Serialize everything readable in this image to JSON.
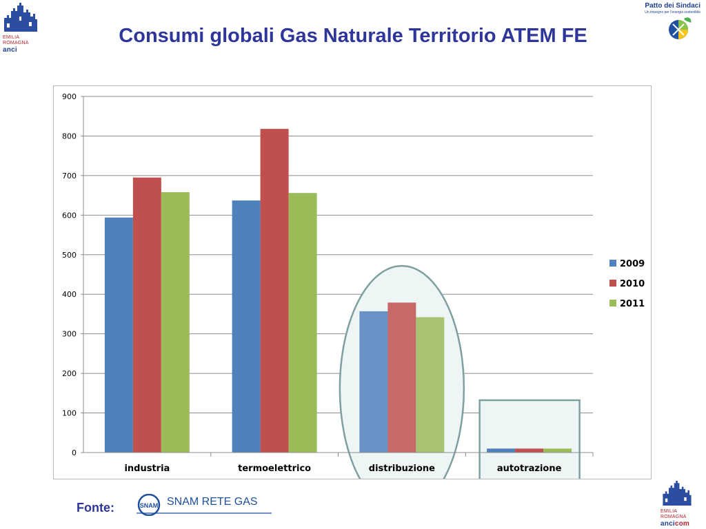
{
  "slide": {
    "title": "Consumi globali Gas Naturale Territorio ATEM FE"
  },
  "logos": {
    "emilia_romagna_top": {
      "line1": "EMILIA",
      "line2": "ROMAGNA",
      "line3": "anci"
    },
    "patto": {
      "title": "Patto dei Sindaci",
      "subtitle": "Un impegno per l'energia sostenibile"
    },
    "emilia_romagna_bottom": {
      "line1": "EMILIA",
      "line2": "ROMAGNA",
      "line3a": "anci",
      "line3b": "com"
    },
    "snam": {
      "text": "SNAM RETE GAS",
      "emblem": "SNAM"
    }
  },
  "footer": {
    "fonte_label": "Fonte:"
  },
  "colors": {
    "title": "#2f3699",
    "series": [
      "#4f81bd",
      "#c0504d",
      "#9bbb59"
    ],
    "highlight_stroke": "#7f9f9f",
    "highlight_fill": "#eef5f5"
  },
  "chart_data": {
    "type": "bar",
    "title": "",
    "xlabel": "",
    "ylabel": "",
    "categories": [
      "industria",
      "termoelettrico",
      "distribuzione",
      "autotrazione"
    ],
    "series": [
      {
        "name": "2009",
        "values": [
          594,
          637,
          357,
          10
        ]
      },
      {
        "name": "2010",
        "values": [
          695,
          818,
          379,
          10
        ]
      },
      {
        "name": "2011",
        "values": [
          658,
          656,
          342,
          10
        ]
      }
    ],
    "ylim": [
      0,
      900
    ],
    "yticks": [
      0,
      100,
      200,
      300,
      400,
      500,
      600,
      700,
      800,
      900
    ],
    "grid": true,
    "legend_position": "right",
    "annotations": [
      {
        "type": "ellipse",
        "target_category": "distribuzione"
      },
      {
        "type": "rectangle",
        "target_category": "autotrazione"
      }
    ]
  }
}
